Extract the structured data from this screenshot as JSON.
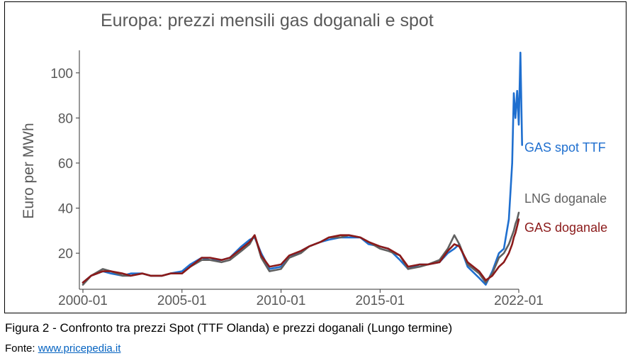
{
  "chart_data": {
    "type": "line",
    "title": "Europa: prezzi mensili gas doganali e spot",
    "ylabel": "Euro per MWh",
    "xlabel": "",
    "x_ticks": [
      "2000-01",
      "2005-01",
      "2010-01",
      "2015-01",
      "2022-01"
    ],
    "y_ticks": [
      20,
      40,
      60,
      80,
      100
    ],
    "xlim": [
      "2000-01",
      "2022-01"
    ],
    "ylim": [
      4,
      110
    ],
    "grid": false,
    "legend": "direct labels at line ends (right)",
    "series": [
      {
        "name": "GAS spot TTF",
        "color": "#1f6fcf",
        "x": [
          "2000-01",
          "2000-06",
          "2001-01",
          "2001-06",
          "2002-01",
          "2002-06",
          "2003-01",
          "2003-06",
          "2004-01",
          "2004-06",
          "2005-01",
          "2005-06",
          "2006-01",
          "2006-06",
          "2007-01",
          "2007-06",
          "2008-01",
          "2008-06",
          "2008-09",
          "2009-01",
          "2009-06",
          "2010-01",
          "2010-06",
          "2011-01",
          "2011-06",
          "2012-01",
          "2012-06",
          "2013-01",
          "2013-06",
          "2014-01",
          "2014-06",
          "2015-01",
          "2015-06",
          "2016-01",
          "2016-06",
          "2017-01",
          "2017-06",
          "2018-01",
          "2018-06",
          "2018-10",
          "2019-01",
          "2019-06",
          "2020-01",
          "2020-05",
          "2020-09",
          "2021-01",
          "2021-04",
          "2021-07",
          "2021-09",
          "2021-10",
          "2021-11",
          "2021-12",
          "2022-01",
          "2022-02",
          "2022-03"
        ],
        "values": [
          7,
          10,
          12,
          11,
          10,
          11,
          11,
          10,
          10,
          11,
          12,
          15,
          18,
          17,
          17,
          18,
          23,
          26,
          27,
          20,
          13,
          14,
          18,
          21,
          23,
          25,
          26,
          27,
          27,
          27,
          24,
          23,
          22,
          17,
          13,
          15,
          15,
          16,
          20,
          22,
          24,
          14,
          9,
          6,
          12,
          20,
          22,
          35,
          60,
          91,
          80,
          92,
          77,
          109,
          68
        ]
      },
      {
        "name": "LNG doganale",
        "color": "#606060",
        "x": [
          "2000-01",
          "2000-06",
          "2001-01",
          "2001-06",
          "2002-01",
          "2002-06",
          "2003-01",
          "2003-06",
          "2004-01",
          "2004-06",
          "2005-01",
          "2005-06",
          "2006-01",
          "2006-06",
          "2007-01",
          "2007-06",
          "2008-01",
          "2008-06",
          "2008-09",
          "2009-01",
          "2009-06",
          "2010-01",
          "2010-06",
          "2011-01",
          "2011-06",
          "2012-01",
          "2012-06",
          "2013-01",
          "2013-06",
          "2014-01",
          "2014-06",
          "2015-01",
          "2015-06",
          "2016-01",
          "2016-06",
          "2017-01",
          "2017-06",
          "2018-01",
          "2018-06",
          "2018-10",
          "2019-01",
          "2019-06",
          "2020-01",
          "2020-05",
          "2020-09",
          "2021-01",
          "2021-04",
          "2021-07",
          "2021-09",
          "2021-10",
          "2021-11",
          "2021-12",
          "2022-01"
        ],
        "values": [
          6,
          10,
          13,
          12,
          10,
          10,
          11,
          10,
          10,
          11,
          11,
          14,
          17,
          17,
          16,
          17,
          21,
          24,
          28,
          18,
          12,
          13,
          18,
          20,
          23,
          25,
          27,
          27,
          28,
          27,
          25,
          22,
          21,
          19,
          13,
          14,
          15,
          17,
          22,
          28,
          24,
          15,
          11,
          7,
          11,
          18,
          20,
          24,
          28,
          30,
          33,
          35,
          38
        ]
      },
      {
        "name": "GAS doganale",
        "color": "#8b1a1a",
        "x": [
          "2000-01",
          "2000-06",
          "2001-01",
          "2001-06",
          "2002-01",
          "2002-06",
          "2003-01",
          "2003-06",
          "2004-01",
          "2004-06",
          "2005-01",
          "2005-06",
          "2006-01",
          "2006-06",
          "2007-01",
          "2007-06",
          "2008-01",
          "2008-06",
          "2008-09",
          "2009-01",
          "2009-06",
          "2010-01",
          "2010-06",
          "2011-01",
          "2011-06",
          "2012-01",
          "2012-06",
          "2013-01",
          "2013-06",
          "2014-01",
          "2014-06",
          "2015-01",
          "2015-06",
          "2016-01",
          "2016-06",
          "2017-01",
          "2017-06",
          "2018-01",
          "2018-06",
          "2018-10",
          "2019-01",
          "2019-06",
          "2020-01",
          "2020-05",
          "2020-09",
          "2021-01",
          "2021-04",
          "2021-07",
          "2021-09",
          "2021-10",
          "2021-11",
          "2021-12",
          "2022-01"
        ],
        "values": [
          7,
          10,
          12,
          12,
          11,
          10,
          11,
          10,
          10,
          11,
          11,
          14,
          18,
          18,
          17,
          18,
          22,
          25,
          28,
          19,
          14,
          15,
          19,
          21,
          23,
          25,
          27,
          28,
          28,
          27,
          25,
          23,
          22,
          19,
          14,
          15,
          15,
          16,
          21,
          24,
          23,
          16,
          12,
          8,
          10,
          14,
          16,
          20,
          24,
          27,
          29,
          32,
          35
        ]
      }
    ]
  },
  "caption": {
    "text": "Figura 2 - Confronto tra prezzi Spot (TTF Olanda) e prezzi doganali (Lungo termine)",
    "source_prefix": "Fonte: ",
    "source_link": "www.pricepedia.it"
  }
}
